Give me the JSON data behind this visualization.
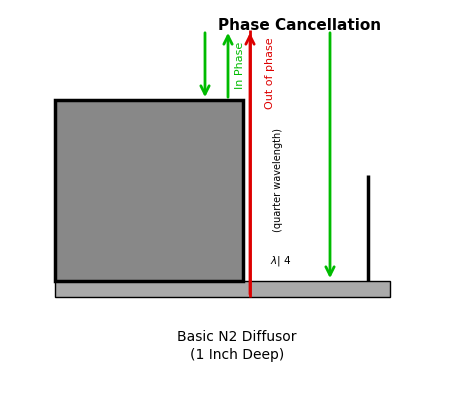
{
  "title": "Phase Cancellation",
  "subtitle1": "Basic N2 Diffusor",
  "subtitle2": "(1 Inch Deep)",
  "bg_color": "#ffffff",
  "tall_block_color": "#888888",
  "tall_block_edge": "#000000",
  "floor_color": "#aaaaaa",
  "floor_edge": "#000000",
  "right_wall_color": "#000000",
  "arrow_green": "#00bb00",
  "arrow_red": "#dd0000",
  "label_in_phase": "In Phase",
  "label_out_phase": "Out of phase",
  "label_quarter": "(quarter wavelength)",
  "label_lambda": "λ⍂4"
}
